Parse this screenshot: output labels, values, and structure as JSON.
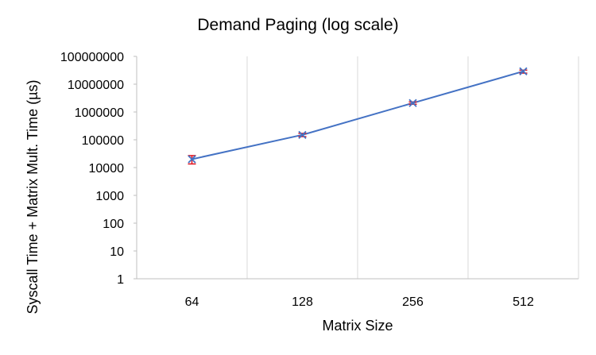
{
  "chart_data": {
    "type": "line",
    "title": "Demand Paging (log scale)",
    "xlabel": "Matrix Size",
    "ylabel": "Syscall Time + Matrix Mult. Time (µs)",
    "categories": [
      "64",
      "128",
      "256",
      "512"
    ],
    "y_scale": "log",
    "ylim": [
      1,
      100000000
    ],
    "y_ticks": [
      "100000000",
      "10000000",
      "1000000",
      "100000",
      "10000",
      "1000",
      "100",
      "10",
      "1"
    ],
    "grid": {
      "vertical": true,
      "horizontal": false
    },
    "series": [
      {
        "values": [
          20000,
          150000,
          2100000,
          29000000
        ],
        "error_low": [
          13500,
          130000,
          1900000,
          25000000
        ],
        "error_high": [
          27000,
          170000,
          2300000,
          32000000
        ]
      }
    ],
    "colors": {
      "line": "#4472c4",
      "marker": "#4472c4",
      "error_bar": "#e0141e",
      "grid": "#d9d9d9",
      "axis": "#bfbfbf"
    }
  }
}
